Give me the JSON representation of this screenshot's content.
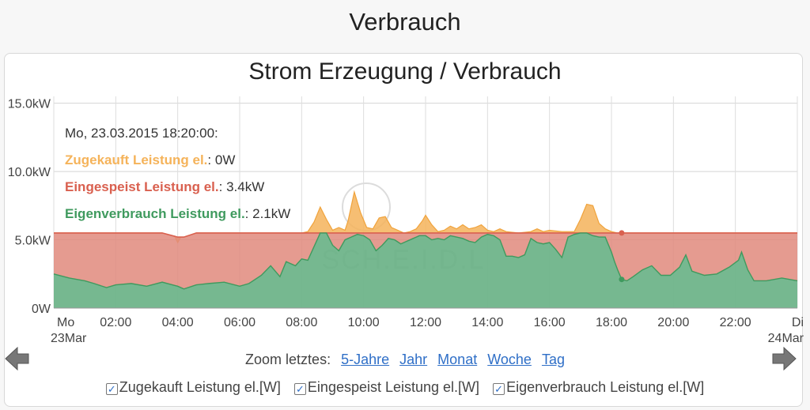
{
  "page": {
    "title": "Verbrauch"
  },
  "tooltip": {
    "header": "Mo, 23.03.2015 18:20:00:",
    "rows": [
      {
        "name": "Zugekauft Leistung el.",
        "value": "0W"
      },
      {
        "name": "Eingespeist Leistung el.",
        "value": "3.4kW"
      },
      {
        "name": "Eigenverbrauch Leistung el.",
        "value": "2.1kW"
      }
    ]
  },
  "watermark": "SCH.E.I.D.L",
  "zoom": {
    "label": "Zoom letztes:",
    "links": [
      "5-Jahre",
      "Jahr",
      "Monat",
      "Woche",
      "Tag"
    ]
  },
  "legend": {
    "items": [
      {
        "label": "Zugekauft Leistung el.[W]",
        "checked": true
      },
      {
        "label": "Eingespeist Leistung el.[W]",
        "checked": true
      },
      {
        "label": "Eigenverbrauch Leistung el.[W]",
        "checked": true
      }
    ]
  },
  "nav": {
    "prev_icon": "left-arrow-icon",
    "next_icon": "right-arrow-icon"
  },
  "colors": {
    "zugekauft": "#f5b35a",
    "eingespeist": "#e08a7c",
    "eigenverbrauch": "#6fb48a",
    "eingespeist_line": "#d9604f",
    "eigenverbrauch_line": "#3f9a5e",
    "link": "#2f6fc7"
  },
  "chart_data": {
    "type": "area",
    "title": "Strom Erzeugung / Verbrauch",
    "stacking": "stacked",
    "x_unit": "hours since 23.03.2015 00:00",
    "xlim": [
      0,
      24
    ],
    "ylim": [
      0,
      15.5
    ],
    "y_unit": "kW",
    "y_ticks": [
      0,
      5,
      10,
      15
    ],
    "y_tick_labels": [
      "0W",
      "5.0kW",
      "10.0kW",
      "15.0kW"
    ],
    "x_ticks": [
      {
        "x": 0,
        "label": "Mo",
        "sublabel": "23Mar"
      },
      {
        "x": 2,
        "label": "02:00"
      },
      {
        "x": 4,
        "label": "04:00"
      },
      {
        "x": 6,
        "label": "06:00"
      },
      {
        "x": 8,
        "label": "08:00"
      },
      {
        "x": 10,
        "label": "10:00"
      },
      {
        "x": 12,
        "label": "12:00"
      },
      {
        "x": 14,
        "label": "14:00"
      },
      {
        "x": 16,
        "label": "16:00"
      },
      {
        "x": 18,
        "label": "18:00"
      },
      {
        "x": 20,
        "label": "20:00"
      },
      {
        "x": 22,
        "label": "22:00"
      },
      {
        "x": 24,
        "label": "Di",
        "sublabel": "24Mar"
      }
    ],
    "grid": true,
    "hover_x": 18.33,
    "series": [
      {
        "name": "Eigenverbrauch Leistung el.",
        "points": [
          [
            0,
            2.5
          ],
          [
            0.5,
            2.2
          ],
          [
            1,
            2.0
          ],
          [
            1.3,
            1.8
          ],
          [
            1.7,
            1.5
          ],
          [
            2,
            1.7
          ],
          [
            2.5,
            1.8
          ],
          [
            3,
            1.6
          ],
          [
            3.5,
            1.9
          ],
          [
            4,
            1.6
          ],
          [
            4.2,
            1.4
          ],
          [
            4.6,
            1.7
          ],
          [
            5,
            1.8
          ],
          [
            5.5,
            1.9
          ],
          [
            6,
            1.6
          ],
          [
            6.3,
            1.8
          ],
          [
            6.7,
            2.4
          ],
          [
            7,
            3.1
          ],
          [
            7.3,
            2.3
          ],
          [
            7.5,
            3.4
          ],
          [
            7.8,
            3.1
          ],
          [
            8,
            3.6
          ],
          [
            8.2,
            3.5
          ],
          [
            8.4,
            4.5
          ],
          [
            8.6,
            5.5
          ],
          [
            8.8,
            5.5
          ],
          [
            9,
            4.6
          ],
          [
            9.2,
            4.2
          ],
          [
            9.4,
            5.0
          ],
          [
            9.6,
            5.2
          ],
          [
            9.8,
            5.4
          ],
          [
            10,
            5.3
          ],
          [
            10.2,
            5.0
          ],
          [
            10.4,
            4.2
          ],
          [
            10.6,
            4.6
          ],
          [
            10.8,
            5.1
          ],
          [
            11,
            5.0
          ],
          [
            11.2,
            4.7
          ],
          [
            11.4,
            4.9
          ],
          [
            11.6,
            5.1
          ],
          [
            11.8,
            5.3
          ],
          [
            12,
            5.3
          ],
          [
            12.2,
            5.0
          ],
          [
            12.4,
            5.1
          ],
          [
            12.6,
            5.0
          ],
          [
            12.8,
            5.3
          ],
          [
            13,
            5.2
          ],
          [
            13.2,
            5.1
          ],
          [
            13.4,
            4.9
          ],
          [
            13.6,
            4.8
          ],
          [
            13.8,
            5.2
          ],
          [
            14,
            5.4
          ],
          [
            14.2,
            5.3
          ],
          [
            14.4,
            5.0
          ],
          [
            14.6,
            3.8
          ],
          [
            14.8,
            3.8
          ],
          [
            15,
            3.7
          ],
          [
            15.2,
            3.9
          ],
          [
            15.4,
            5.1
          ],
          [
            15.6,
            4.8
          ],
          [
            15.8,
            4.7
          ],
          [
            16,
            4.8
          ],
          [
            16.2,
            4.3
          ],
          [
            16.4,
            3.7
          ],
          [
            16.6,
            5.2
          ],
          [
            16.8,
            5.4
          ],
          [
            17,
            5.5
          ],
          [
            17.2,
            5.5
          ],
          [
            17.4,
            5.3
          ],
          [
            17.6,
            5.2
          ],
          [
            17.8,
            5.2
          ],
          [
            18,
            4.1
          ],
          [
            18.1,
            3.4
          ],
          [
            18.2,
            2.8
          ],
          [
            18.33,
            2.1
          ],
          [
            18.5,
            2.0
          ],
          [
            18.7,
            2.3
          ],
          [
            19,
            2.8
          ],
          [
            19.3,
            3.1
          ],
          [
            19.6,
            2.4
          ],
          [
            19.9,
            2.4
          ],
          [
            20.2,
            3.0
          ],
          [
            20.4,
            3.9
          ],
          [
            20.6,
            2.7
          ],
          [
            21,
            2.4
          ],
          [
            21.4,
            2.5
          ],
          [
            21.8,
            3.0
          ],
          [
            22.1,
            3.5
          ],
          [
            22.2,
            4.1
          ],
          [
            22.4,
            2.8
          ],
          [
            22.6,
            2.0
          ],
          [
            23,
            2.0
          ],
          [
            23.5,
            2.2
          ],
          [
            24,
            2.0
          ]
        ]
      },
      {
        "name": "Eingespeist Leistung el.",
        "points": [
          [
            0,
            3.0
          ],
          [
            0.5,
            3.3
          ],
          [
            1,
            3.5
          ],
          [
            1.3,
            3.7
          ],
          [
            1.7,
            4.0
          ],
          [
            2,
            3.8
          ],
          [
            2.5,
            3.7
          ],
          [
            3,
            3.9
          ],
          [
            3.5,
            3.6
          ],
          [
            4,
            3.6
          ],
          [
            4.2,
            3.8
          ],
          [
            4.6,
            3.8
          ],
          [
            5,
            3.7
          ],
          [
            5.5,
            3.6
          ],
          [
            6,
            3.9
          ],
          [
            6.3,
            3.7
          ],
          [
            6.7,
            3.1
          ],
          [
            7,
            2.4
          ],
          [
            7.3,
            3.2
          ],
          [
            7.5,
            2.1
          ],
          [
            7.8,
            2.4
          ],
          [
            8,
            1.9
          ],
          [
            8.2,
            2.0
          ],
          [
            8.4,
            1.0
          ],
          [
            8.6,
            0
          ],
          [
            8.8,
            0
          ],
          [
            9,
            0.9
          ],
          [
            9.2,
            1.3
          ],
          [
            9.4,
            0.5
          ],
          [
            9.6,
            0.3
          ],
          [
            9.8,
            0.1
          ],
          [
            10,
            0.2
          ],
          [
            10.2,
            0.5
          ],
          [
            10.4,
            1.3
          ],
          [
            10.6,
            0.9
          ],
          [
            10.8,
            0.4
          ],
          [
            11,
            0.5
          ],
          [
            11.2,
            0.8
          ],
          [
            11.4,
            0.6
          ],
          [
            11.6,
            0.4
          ],
          [
            11.8,
            0.2
          ],
          [
            12,
            0.2
          ],
          [
            12.2,
            0.5
          ],
          [
            12.4,
            0.4
          ],
          [
            12.6,
            0.5
          ],
          [
            12.8,
            0.2
          ],
          [
            13,
            0.3
          ],
          [
            13.2,
            0.4
          ],
          [
            13.4,
            0.6
          ],
          [
            13.6,
            0.7
          ],
          [
            13.8,
            0.3
          ],
          [
            14,
            0.1
          ],
          [
            14.2,
            0.2
          ],
          [
            14.4,
            0.5
          ],
          [
            14.6,
            1.7
          ],
          [
            14.8,
            1.7
          ],
          [
            15,
            1.8
          ],
          [
            15.2,
            1.6
          ],
          [
            15.4,
            0.4
          ],
          [
            15.6,
            0.7
          ],
          [
            15.8,
            0.8
          ],
          [
            16,
            0.7
          ],
          [
            16.2,
            1.2
          ],
          [
            16.4,
            1.8
          ],
          [
            16.6,
            0.3
          ],
          [
            16.8,
            0.1
          ],
          [
            17,
            0
          ],
          [
            17.2,
            0
          ],
          [
            17.4,
            0.2
          ],
          [
            17.6,
            0.3
          ],
          [
            17.8,
            0.3
          ],
          [
            18,
            1.4
          ],
          [
            18.1,
            2.1
          ],
          [
            18.2,
            2.7
          ],
          [
            18.33,
            3.4
          ],
          [
            18.5,
            3.5
          ],
          [
            18.7,
            3.2
          ],
          [
            19,
            2.7
          ],
          [
            19.3,
            2.4
          ],
          [
            19.6,
            3.1
          ],
          [
            19.9,
            3.1
          ],
          [
            20.2,
            2.5
          ],
          [
            20.4,
            1.6
          ],
          [
            20.6,
            2.8
          ],
          [
            21,
            3.1
          ],
          [
            21.4,
            3.0
          ],
          [
            21.8,
            2.5
          ],
          [
            22.1,
            2.0
          ],
          [
            22.2,
            1.4
          ],
          [
            22.4,
            2.7
          ],
          [
            22.6,
            3.5
          ],
          [
            23,
            3.5
          ],
          [
            23.5,
            3.3
          ],
          [
            24,
            3.5
          ]
        ]
      },
      {
        "name": "Zugekauft Leistung el.",
        "points": [
          [
            0,
            0
          ],
          [
            3.9,
            0
          ],
          [
            4.0,
            -0.4
          ],
          [
            4.1,
            0
          ],
          [
            8,
            0
          ],
          [
            8.2,
            0.1
          ],
          [
            8.4,
            0.8
          ],
          [
            8.6,
            1.9
          ],
          [
            8.8,
            1.0
          ],
          [
            9,
            0.2
          ],
          [
            9.2,
            0.4
          ],
          [
            9.4,
            0.2
          ],
          [
            9.5,
            0.9
          ],
          [
            9.7,
            3.0
          ],
          [
            9.9,
            1.5
          ],
          [
            10.1,
            0.4
          ],
          [
            10.3,
            0.3
          ],
          [
            10.5,
            1.1
          ],
          [
            10.7,
            1.2
          ],
          [
            10.9,
            0.4
          ],
          [
            11.1,
            0.2
          ],
          [
            11.3,
            0
          ],
          [
            11.5,
            0.1
          ],
          [
            11.7,
            0.3
          ],
          [
            11.9,
            0.9
          ],
          [
            12,
            1.3
          ],
          [
            12.2,
            0.6
          ],
          [
            12.4,
            0.1
          ],
          [
            12.6,
            0.2
          ],
          [
            12.8,
            0.5
          ],
          [
            13,
            0.3
          ],
          [
            13.2,
            0.6
          ],
          [
            13.4,
            0.3
          ],
          [
            13.6,
            0.4
          ],
          [
            13.8,
            0.6
          ],
          [
            14,
            0.2
          ],
          [
            14.2,
            0.1
          ],
          [
            14.4,
            0.3
          ],
          [
            14.6,
            0.1
          ],
          [
            15,
            0
          ],
          [
            15.4,
            0.1
          ],
          [
            15.6,
            0.3
          ],
          [
            15.8,
            0.1
          ],
          [
            16,
            0.2
          ],
          [
            16.4,
            0.1
          ],
          [
            16.8,
            0.1
          ],
          [
            17,
            1.0
          ],
          [
            17.2,
            2.1
          ],
          [
            17.4,
            2.0
          ],
          [
            17.6,
            0.7
          ],
          [
            17.8,
            0.3
          ],
          [
            18,
            0.1
          ],
          [
            18.2,
            0
          ],
          [
            24,
            0
          ]
        ]
      }
    ]
  }
}
